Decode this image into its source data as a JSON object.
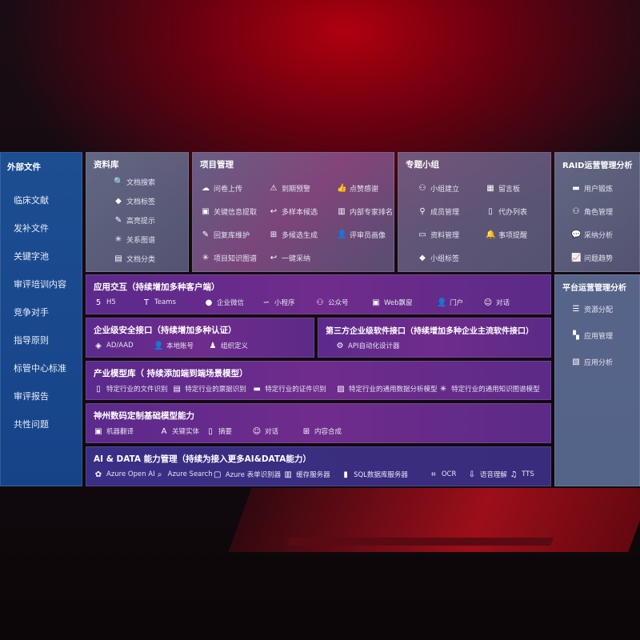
{
  "sidebar": {
    "title": "外部文件",
    "items": [
      "临床文献",
      "发补文件",
      "关键字池",
      "审评培训内容",
      "竞争对手",
      "指导原则",
      "标管中心标准",
      "审评报告",
      "共性问题"
    ]
  },
  "library": {
    "title": "资料库",
    "items": [
      {
        "label": "文档搜索",
        "icon": "doc-search-icon"
      },
      {
        "label": "文档标签",
        "icon": "tag-icon"
      },
      {
        "label": "高亮提示",
        "icon": "pen-icon"
      },
      {
        "label": "关系图谱",
        "icon": "graph-icon"
      },
      {
        "label": "文档分类",
        "icon": "doc-stack-icon"
      }
    ]
  },
  "project": {
    "title": "项目管理",
    "items": [
      {
        "label": "问卷上传",
        "icon": "cloud-upload-icon"
      },
      {
        "label": "到期预警",
        "icon": "alarm-icon"
      },
      {
        "label": "点赞感谢",
        "icon": "thumbs-up-icon"
      },
      {
        "label": "关键信息提取",
        "icon": "window-icon"
      },
      {
        "label": "多样本候选",
        "icon": "reply-icon"
      },
      {
        "label": "内部专家排名",
        "icon": "ranking-icon"
      },
      {
        "label": "回复库维护",
        "icon": "pen-icon"
      },
      {
        "label": "多候选生成",
        "icon": "puzzle-icon"
      },
      {
        "label": "评审员画像",
        "icon": "user-icon"
      },
      {
        "label": "项目知识图谱",
        "icon": "graph-icon"
      },
      {
        "label": "一键采纳",
        "icon": "reply-icon"
      }
    ]
  },
  "group": {
    "title": "专题小组",
    "items": [
      {
        "label": "小组建立",
        "icon": "users-icon"
      },
      {
        "label": "留言板",
        "icon": "bbs-icon"
      },
      {
        "label": "成员管理",
        "icon": "user-add-icon"
      },
      {
        "label": "代办列表",
        "icon": "clipboard-icon"
      },
      {
        "label": "资料管理",
        "icon": "folder-icon"
      },
      {
        "label": "事项提醒",
        "icon": "bell-icon"
      },
      {
        "label": "小组标签",
        "icon": "tag-icon"
      }
    ]
  },
  "raid": {
    "title": "RAID运营管理分析",
    "items": [
      {
        "label": "用户锻炼",
        "icon": "id-card-icon"
      },
      {
        "label": "角色管理",
        "icon": "users-icon"
      },
      {
        "label": "采纳分析",
        "icon": "qa-icon"
      },
      {
        "label": "问题趋势",
        "icon": "trend-icon"
      }
    ]
  },
  "platform": {
    "title": "平台运营管理分析",
    "items": [
      {
        "label": "资源分配",
        "icon": "checklist-icon"
      },
      {
        "label": "应用管理",
        "icon": "apps-icon"
      },
      {
        "label": "应用分析",
        "icon": "analysis-icon"
      }
    ]
  },
  "app": {
    "title": "应用交互（持续增加多种客户端）",
    "items": [
      {
        "label": "H5",
        "icon": "html5-icon"
      },
      {
        "label": "Teams",
        "icon": "teams-icon"
      },
      {
        "label": "企业微信",
        "icon": "wecom-icon"
      },
      {
        "label": "小程序",
        "icon": "miniprogram-icon"
      },
      {
        "label": "公众号",
        "icon": "official-account-icon"
      },
      {
        "label": "Web飘窗",
        "icon": "window-icon"
      },
      {
        "label": "门户",
        "icon": "portal-icon"
      },
      {
        "label": "对话",
        "icon": "chat-icon"
      }
    ]
  },
  "security": {
    "title": "企业级安全接口（持续增加多种认证）",
    "items": [
      {
        "label": "AD/AAD",
        "icon": "ad-icon"
      },
      {
        "label": "本地账号",
        "icon": "user-icon"
      },
      {
        "label": "组织定义",
        "icon": "org-icon"
      }
    ]
  },
  "thirdparty": {
    "title": "第三方企业级软件接口（持续增加多种企业主流软件接口）",
    "items": [
      {
        "label": "API自动化设计器",
        "icon": "gear-icon"
      }
    ]
  },
  "industry": {
    "title": "产业模型库（ 持续添加端到端场景模型）",
    "items": [
      {
        "label": "特定行业的文件识别",
        "icon": "file-icon"
      },
      {
        "label": "特定行业的票据识别",
        "icon": "receipt-icon"
      },
      {
        "label": "特定行业的证件识别",
        "icon": "id-card-icon"
      },
      {
        "label": "特定行业的通用数据分析模型",
        "icon": "chart-icon"
      },
      {
        "label": "特定行业的通用知识图谱模型",
        "icon": "graph-icon"
      }
    ]
  },
  "base": {
    "title": "神州数码定制基础模型能力",
    "items": [
      {
        "label": "机器翻译",
        "icon": "translate-icon"
      },
      {
        "label": "关键实体",
        "icon": "entity-icon"
      },
      {
        "label": "摘要",
        "icon": "doc-icon"
      },
      {
        "label": "对话",
        "icon": "chat-icon"
      },
      {
        "label": "内容合成",
        "icon": "puzzle-icon"
      }
    ]
  },
  "aidata": {
    "title": "AI & DATA 能力管理（持续为接入更多AI&DATA能力）",
    "items": [
      {
        "label": "Azure Open AI",
        "icon": "openai-icon"
      },
      {
        "label": "Azure Search",
        "icon": "search-icon"
      },
      {
        "label": "Azure 表单识别器",
        "icon": "form-icon"
      },
      {
        "label": "缓存服务器",
        "icon": "server-icon"
      },
      {
        "label": "SQL数据库服务器",
        "icon": "database-icon"
      },
      {
        "label": "OCR",
        "icon": "ocr-icon"
      },
      {
        "label": "语音理解",
        "icon": "speech-icon"
      },
      {
        "label": "TTS",
        "icon": "tts-icon"
      }
    ]
  }
}
